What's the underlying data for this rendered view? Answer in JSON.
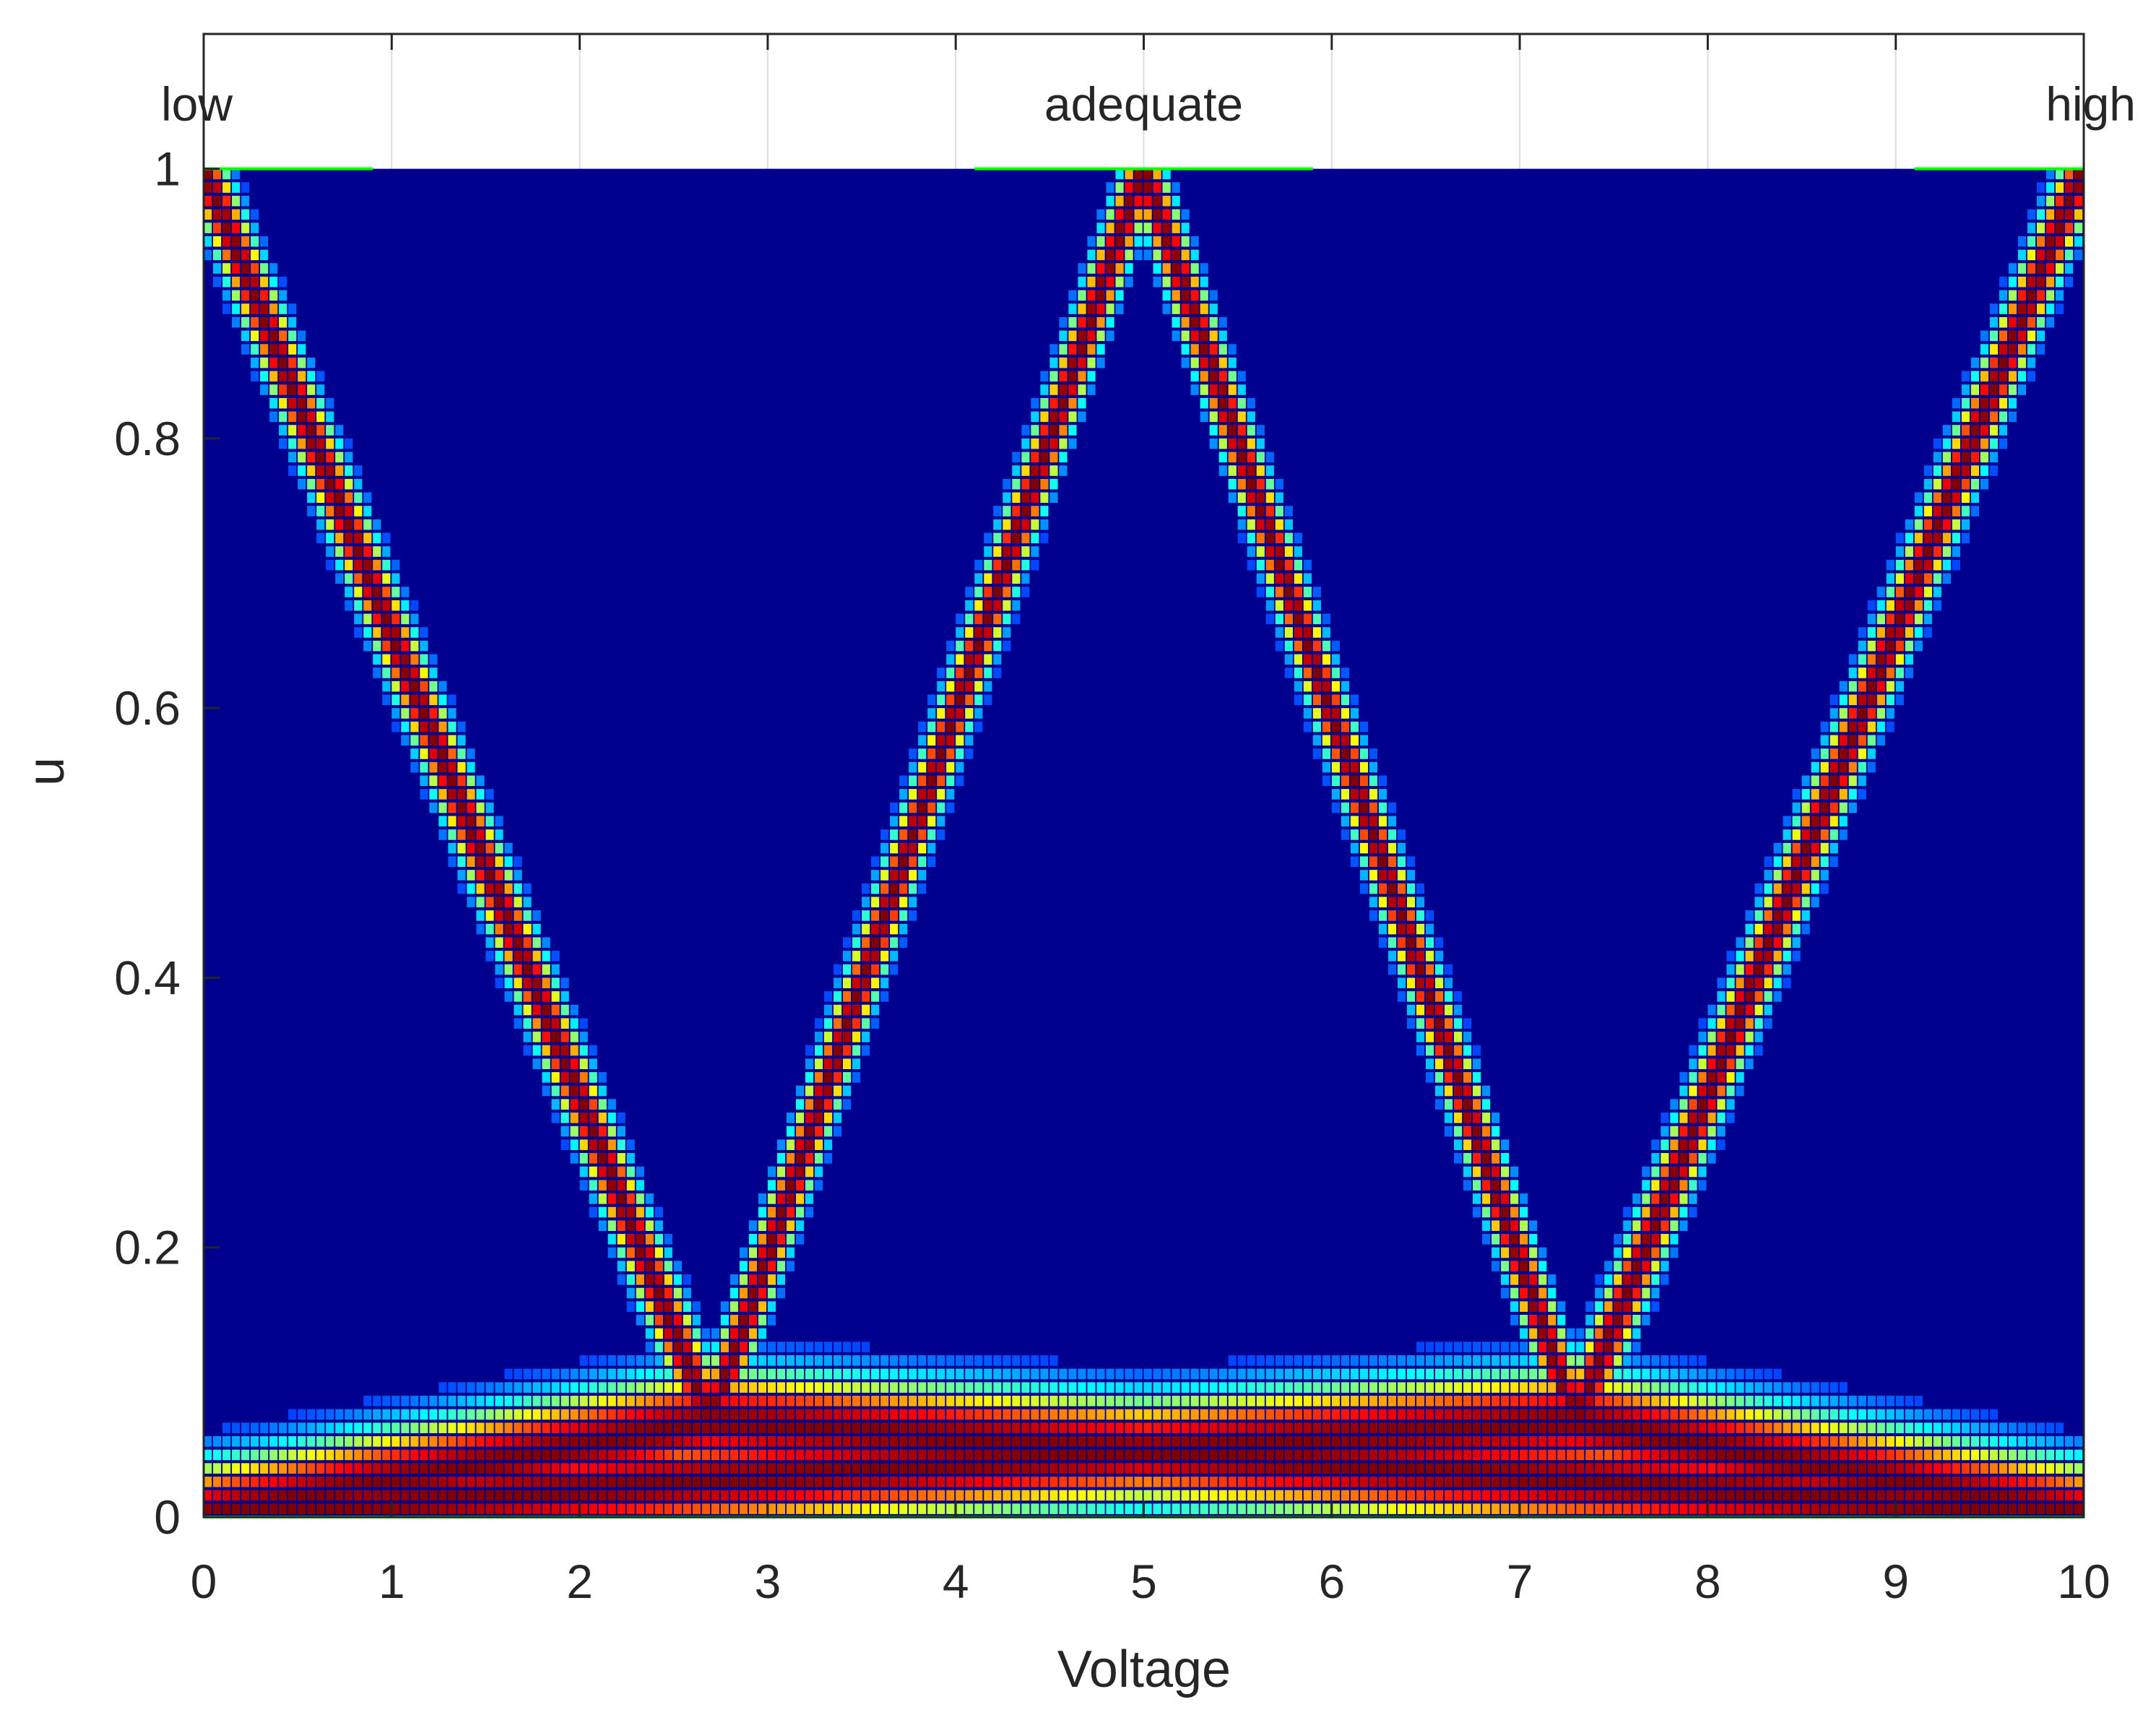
{
  "chart_data": {
    "type": "heatmap",
    "title": "",
    "xlabel": "Voltage",
    "ylabel": "u",
    "xlim": [
      0,
      10
    ],
    "ylim": [
      0,
      1.1
    ],
    "xticks": [
      0,
      1,
      2,
      3,
      4,
      5,
      6,
      7,
      8,
      9,
      10
    ],
    "xtick_labels": [
      "0",
      "1",
      "2",
      "3",
      "4",
      "5",
      "6",
      "7",
      "8",
      "9",
      "10"
    ],
    "yticks": [
      0,
      0.2,
      0.4,
      0.6,
      0.8,
      1
    ],
    "ytick_labels": [
      "0",
      "0.2",
      "0.4",
      "0.6",
      "0.8",
      "1"
    ],
    "colormap": "jet",
    "grid": true,
    "annotations": [
      {
        "text": "low",
        "x": 0
      },
      {
        "text": "adequate",
        "x": 5
      },
      {
        "text": "high",
        "x": 10
      }
    ],
    "membership_functions": [
      {
        "label": "low",
        "shape": "z",
        "points": [
          [
            0,
            1
          ],
          [
            2.7,
            0.07
          ],
          [
            10,
            0
          ]
        ]
      },
      {
        "label": "adequate",
        "shape": "triangle",
        "points": [
          [
            0,
            0
          ],
          [
            2.7,
            0.07
          ],
          [
            5,
            1
          ],
          [
            7.3,
            0.07
          ],
          [
            10,
            0
          ]
        ]
      },
      {
        "label": "high",
        "shape": "s",
        "points": [
          [
            0,
            0
          ],
          [
            7.3,
            0.07
          ],
          [
            10,
            1
          ]
        ]
      }
    ],
    "colors": {
      "background": "#00008f",
      "low": "#00008f",
      "mid": "#00ffff",
      "peak": "#ff0000",
      "edge": "#00ff00"
    }
  }
}
